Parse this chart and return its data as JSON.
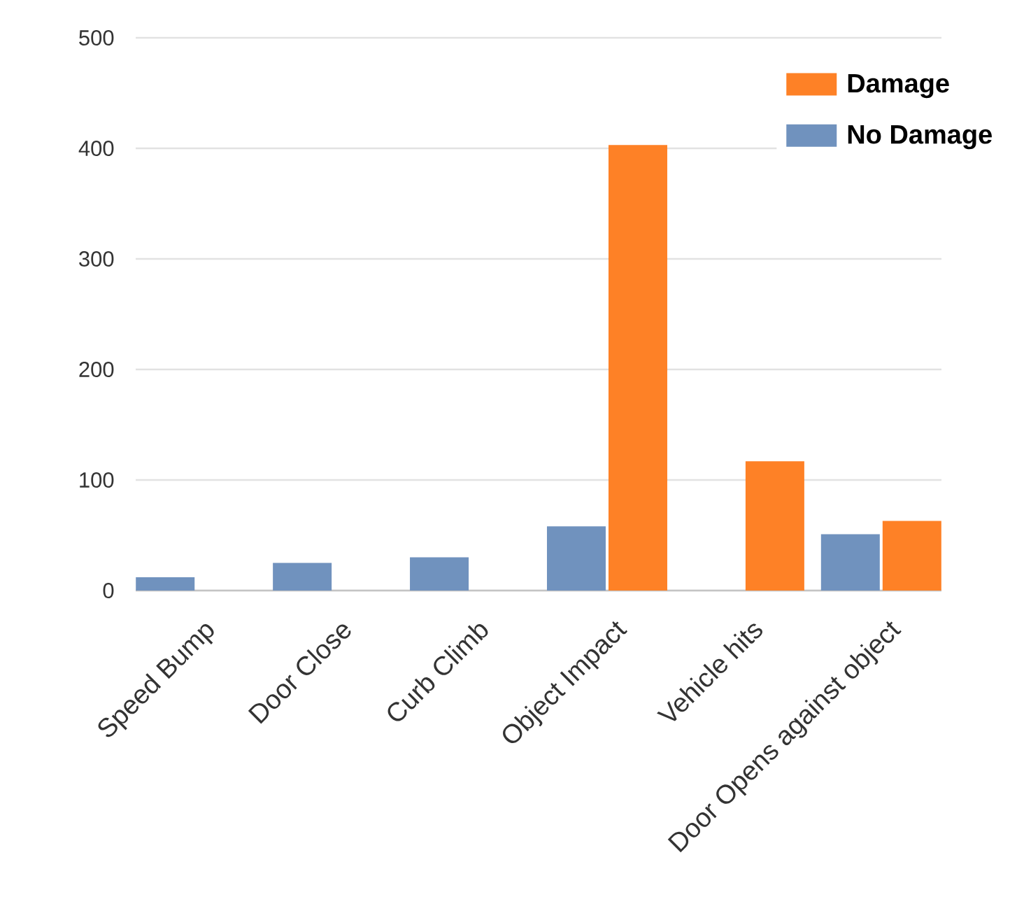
{
  "chart_data": {
    "type": "bar",
    "categories": [
      "Speed Bump",
      "Door Close",
      "Curb Climb",
      "Object Impact",
      "Vehicle hits",
      "Door Opens against object"
    ],
    "series": [
      {
        "name": "No Damage",
        "color": "#7092be",
        "values": [
          12,
          25,
          30,
          58,
          null,
          51
        ]
      },
      {
        "name": "Damage",
        "color": "#fe8126",
        "values": [
          null,
          null,
          null,
          403,
          117,
          63
        ]
      }
    ],
    "ylim": [
      0,
      500
    ],
    "yticks": [
      0,
      100,
      200,
      300,
      400,
      500
    ],
    "grid": "y",
    "legend": "top right"
  }
}
